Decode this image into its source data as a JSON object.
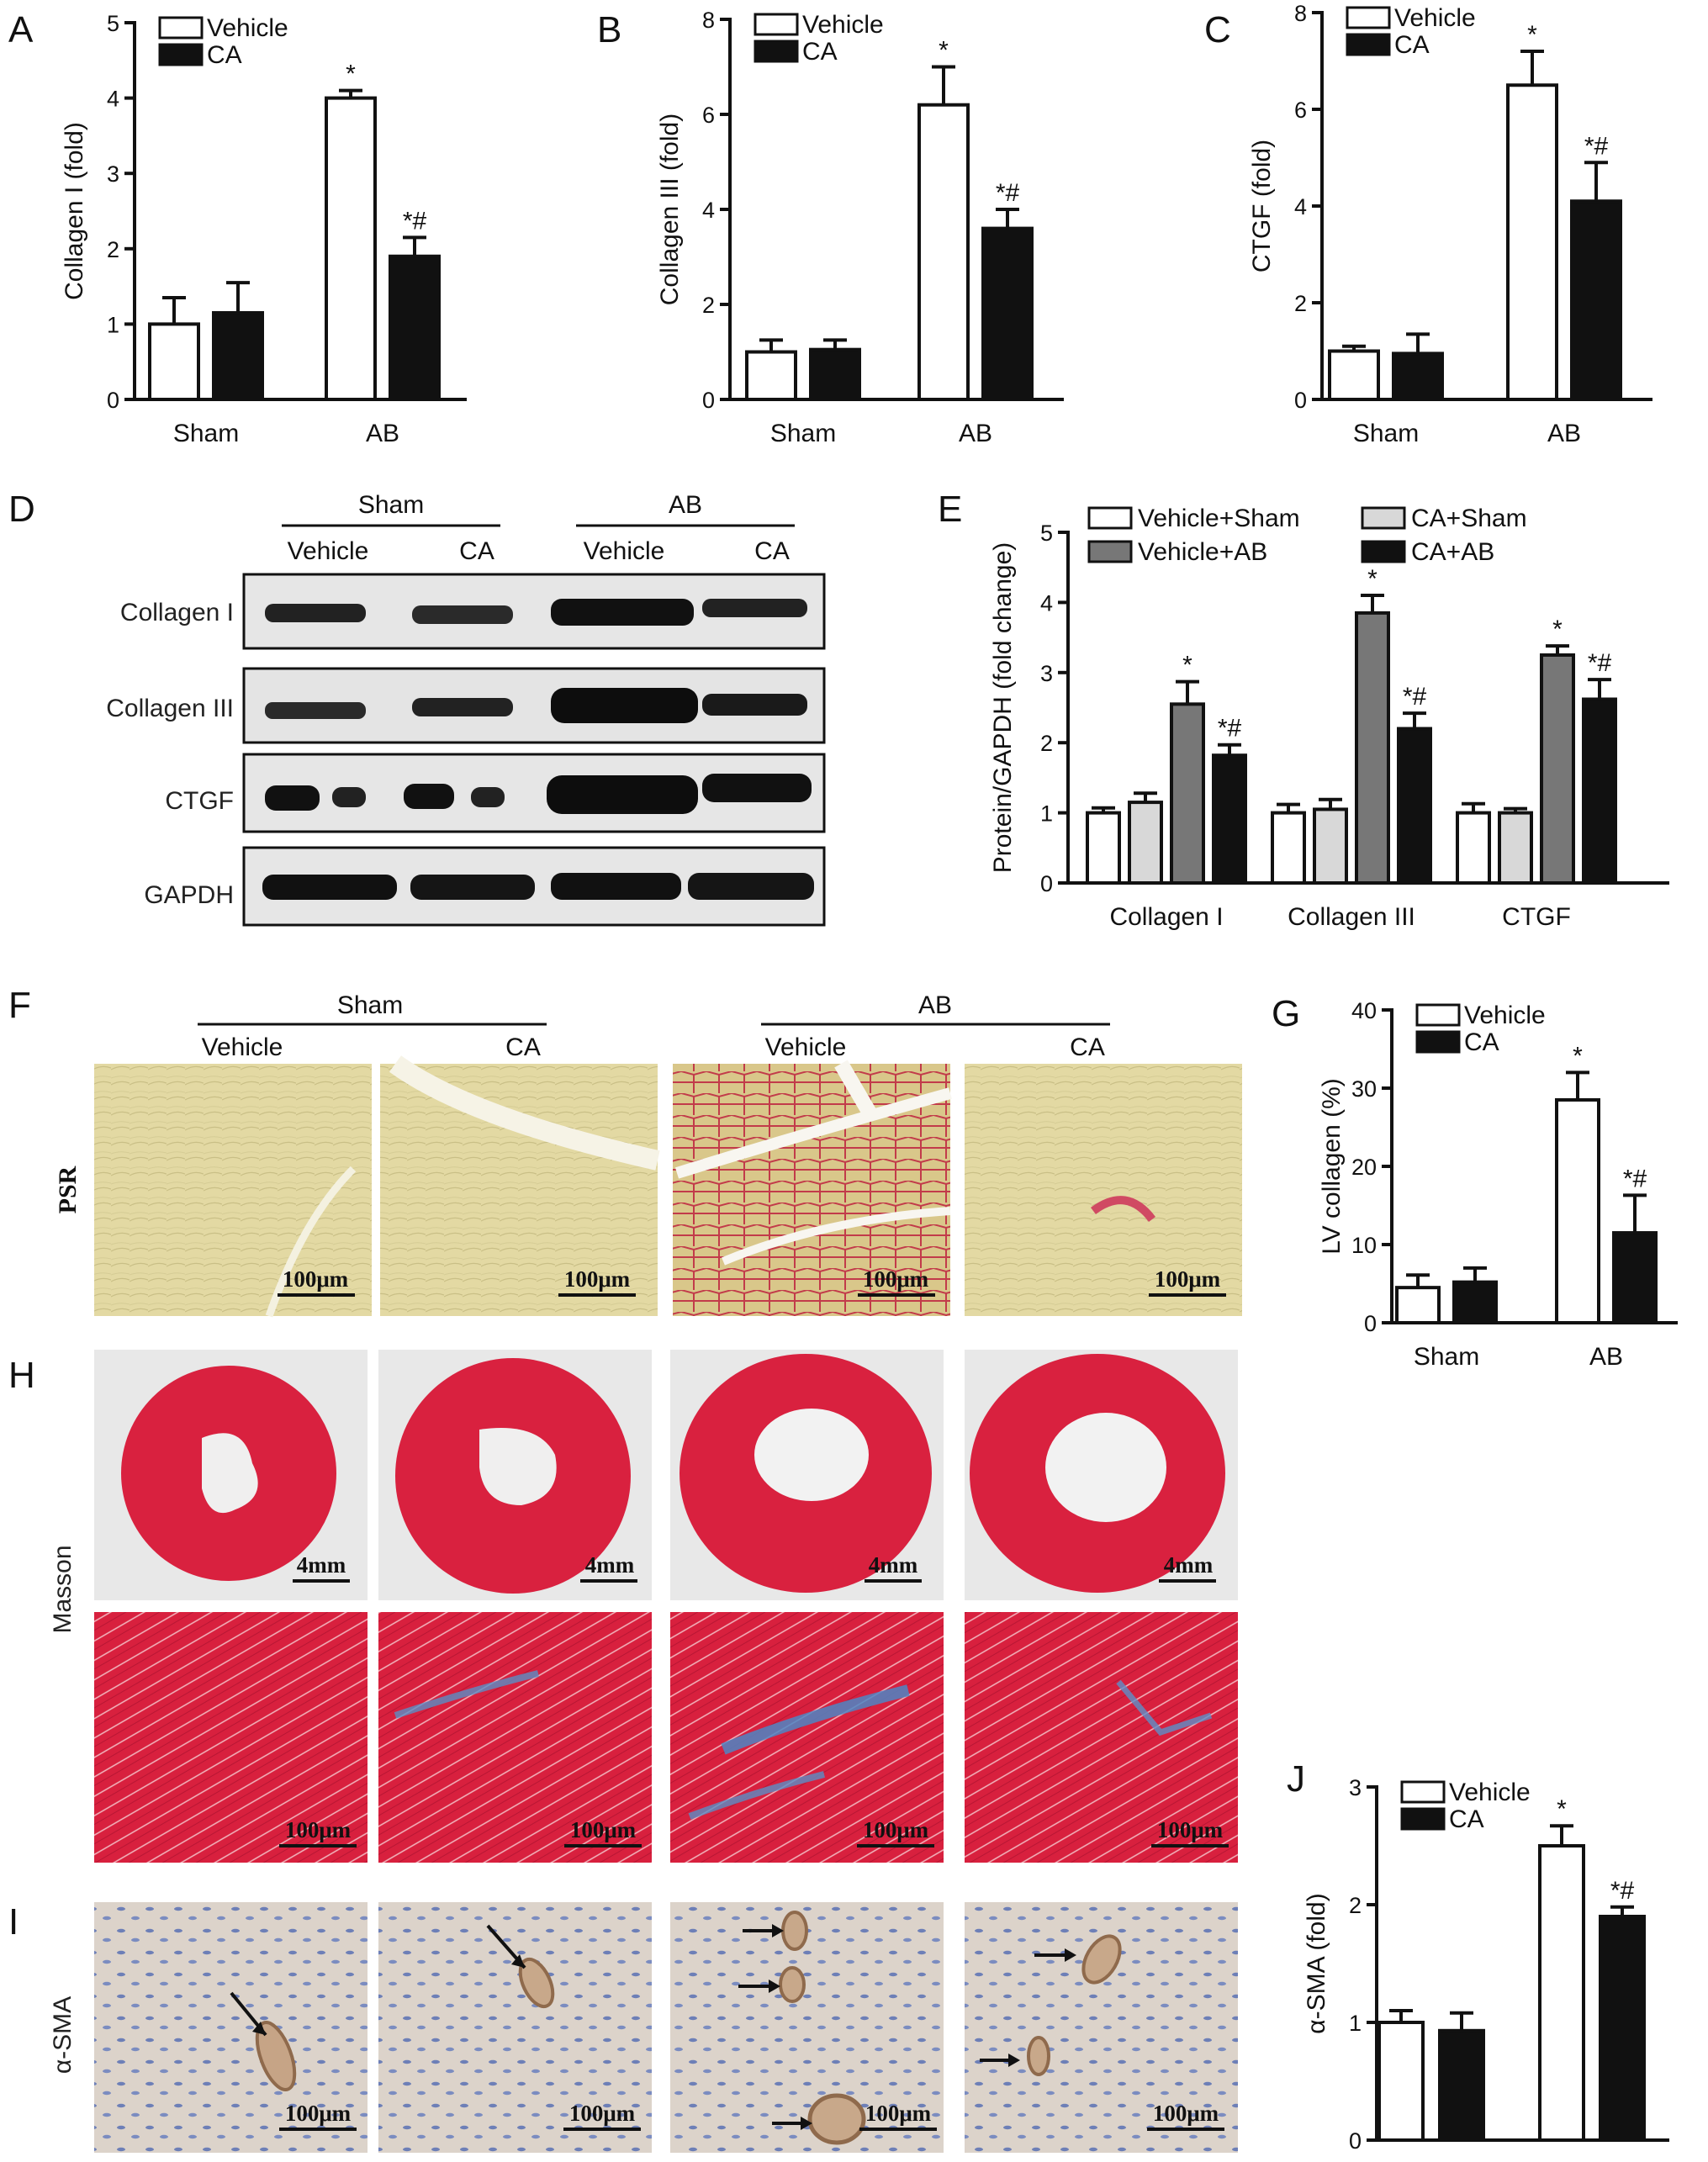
{
  "panel_letters": [
    "A",
    "B",
    "C",
    "D",
    "E",
    "F",
    "G",
    "H",
    "I",
    "J"
  ],
  "colors": {
    "vehicle": "#ffffff",
    "ca": "#111111",
    "dark_grey": "#777777",
    "light_grey": "#d8d8d8",
    "psr_bg": "#e2d9a0",
    "masson_red": "#d9213f",
    "masson_bg": "#e9e9e9",
    "ihc_bg": "#d9d1c9"
  },
  "chart_data": [
    {
      "id": "A",
      "type": "bar",
      "categories": [
        "Sham",
        "AB"
      ],
      "ylabel": "Collagen I (fold)",
      "ylim": [
        0,
        5
      ],
      "yticks": [
        0,
        1,
        2,
        3,
        4,
        5
      ],
      "series": [
        {
          "name": "Vehicle",
          "values": [
            1.0,
            4.0
          ],
          "errors": [
            0.35,
            0.1
          ]
        },
        {
          "name": "CA",
          "values": [
            1.15,
            1.9
          ],
          "errors": [
            0.4,
            0.25
          ]
        }
      ],
      "annotations": [
        [
          "",
          "*"
        ],
        [
          "",
          "*#"
        ]
      ],
      "legend": "top-left"
    },
    {
      "id": "B",
      "type": "bar",
      "categories": [
        "Sham",
        "AB"
      ],
      "ylabel": "Collagen III (fold)",
      "ylim": [
        0,
        8
      ],
      "yticks": [
        0,
        2,
        4,
        6,
        8
      ],
      "series": [
        {
          "name": "Vehicle",
          "values": [
            1.0,
            6.2
          ],
          "errors": [
            0.25,
            0.8
          ]
        },
        {
          "name": "CA",
          "values": [
            1.05,
            3.6
          ],
          "errors": [
            0.2,
            0.4
          ]
        }
      ],
      "annotations": [
        [
          "",
          "*"
        ],
        [
          "",
          "*#"
        ]
      ],
      "legend": "top-left"
    },
    {
      "id": "C",
      "type": "bar",
      "categories": [
        "Sham",
        "AB"
      ],
      "ylabel": "CTGF (fold)",
      "ylim": [
        0,
        8
      ],
      "yticks": [
        0,
        2,
        4,
        6,
        8
      ],
      "series": [
        {
          "name": "Vehicle",
          "values": [
            1.0,
            6.5
          ],
          "errors": [
            0.1,
            0.7
          ]
        },
        {
          "name": "CA",
          "values": [
            0.95,
            4.1
          ],
          "errors": [
            0.4,
            0.8
          ]
        }
      ],
      "annotations": [
        [
          "",
          "*"
        ],
        [
          "",
          "*#"
        ]
      ],
      "legend": "top-left"
    },
    {
      "id": "E",
      "type": "bar",
      "categories": [
        "Collagen I",
        "Collagen III",
        "CTGF"
      ],
      "ylabel": "Protein/GAPDH (fold change)",
      "ylim": [
        0,
        5
      ],
      "yticks": [
        0,
        1,
        2,
        3,
        4,
        5
      ],
      "series": [
        {
          "name": "Vehicle+Sham",
          "values": [
            1.0,
            1.0,
            1.0
          ],
          "errors": [
            0.07,
            0.12,
            0.13
          ]
        },
        {
          "name": "CA+Sham",
          "values": [
            1.15,
            1.05,
            1.0
          ],
          "errors": [
            0.13,
            0.14,
            0.06
          ]
        },
        {
          "name": "Vehicle+AB",
          "values": [
            2.55,
            3.85,
            3.25
          ],
          "errors": [
            0.32,
            0.25,
            0.13
          ]
        },
        {
          "name": "CA+AB",
          "values": [
            1.82,
            2.2,
            2.62
          ],
          "errors": [
            0.15,
            0.22,
            0.28
          ]
        }
      ],
      "annotations": [
        [
          "",
          "",
          ""
        ],
        [
          "",
          "",
          ""
        ],
        [
          "*",
          "*",
          "*"
        ],
        [
          "*#",
          "*#",
          "*#"
        ]
      ],
      "legend": "top"
    },
    {
      "id": "G",
      "type": "bar",
      "categories": [
        "Sham",
        "AB"
      ],
      "ylabel": "LV collagen (%)",
      "ylim": [
        0,
        40
      ],
      "yticks": [
        0,
        10,
        20,
        30,
        40
      ],
      "series": [
        {
          "name": "Vehicle",
          "values": [
            4.5,
            28.5
          ],
          "errors": [
            1.6,
            3.5
          ]
        },
        {
          "name": "CA",
          "values": [
            5.2,
            11.5
          ],
          "errors": [
            1.8,
            4.8
          ]
        }
      ],
      "annotations": [
        [
          "",
          "*"
        ],
        [
          "",
          "*#"
        ]
      ],
      "legend": "top-left"
    },
    {
      "id": "J",
      "type": "bar",
      "categories": [
        "Sham",
        "AB"
      ],
      "ylabel": "α-SMA (fold)",
      "ylim": [
        0,
        3
      ],
      "yticks": [
        0,
        1,
        2,
        3
      ],
      "series": [
        {
          "name": "Vehicle",
          "values": [
            1.0,
            2.5
          ],
          "errors": [
            0.1,
            0.17
          ]
        },
        {
          "name": "CA",
          "values": [
            0.93,
            1.9
          ],
          "errors": [
            0.15,
            0.08
          ]
        }
      ],
      "annotations": [
        [
          "",
          "*"
        ],
        [
          "",
          "*#"
        ]
      ],
      "legend": "top-left"
    }
  ],
  "western_blot": {
    "groups": [
      "Sham",
      "AB"
    ],
    "lanes": [
      "Vehicle",
      "CA",
      "Vehicle",
      "CA"
    ],
    "rows": [
      "Collagen I",
      "Collagen III",
      "CTGF",
      "GAPDH"
    ]
  },
  "histology": {
    "groups": [
      "Sham",
      "AB"
    ],
    "lanes": [
      "Vehicle",
      "CA",
      "Vehicle",
      "CA"
    ],
    "psr_label": "PSR",
    "masson_label": "Masson",
    "sma_label": "α-SMA",
    "scale_100": "100μm",
    "scale_4mm": "4mm"
  }
}
